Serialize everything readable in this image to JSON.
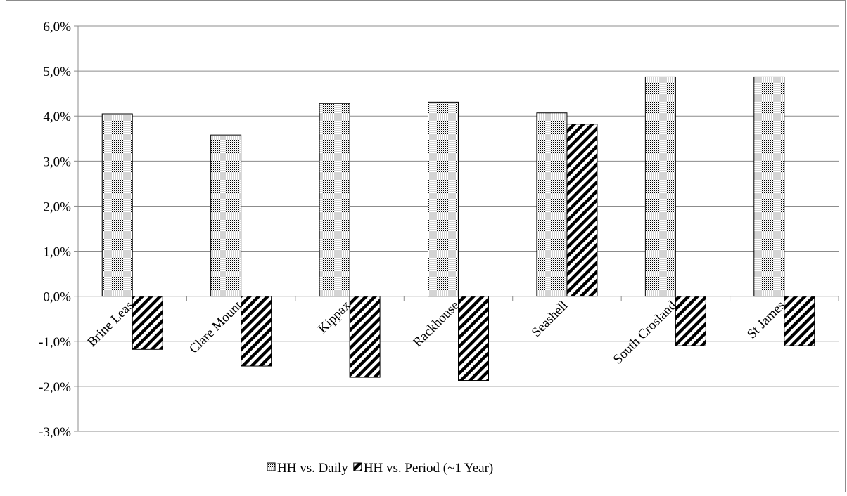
{
  "chart_data": {
    "type": "bar",
    "title": "",
    "xlabel": "",
    "ylabel": "",
    "categories": [
      "Brine Leas",
      "Clare Mount",
      "Kippax",
      "Rackhouse",
      "Seashell",
      "South Crosland",
      "St James"
    ],
    "series": [
      {
        "name": "HH vs. Daily",
        "pattern": "dotted",
        "values": [
          4.05,
          3.58,
          4.28,
          4.31,
          4.07,
          4.87,
          4.87
        ]
      },
      {
        "name": "HH vs. Period (~1 Year)",
        "pattern": "diagonal-hatch",
        "values": [
          -1.18,
          -1.55,
          -1.8,
          -1.87,
          3.82,
          -1.1,
          -1.1
        ]
      }
    ],
    "ylim": [
      -3.0,
      6.0
    ],
    "yticks": [
      6.0,
      5.0,
      4.0,
      3.0,
      2.0,
      1.0,
      0.0,
      -1.0,
      -2.0,
      -3.0
    ],
    "ytick_labels": [
      "6,0%",
      "5,0%",
      "4,0%",
      "3,0%",
      "2,0%",
      "1,0%",
      "0,0%",
      "-1,0%",
      "-2,0%",
      "-3,0%"
    ],
    "grid": true,
    "legend_position": "bottom"
  }
}
